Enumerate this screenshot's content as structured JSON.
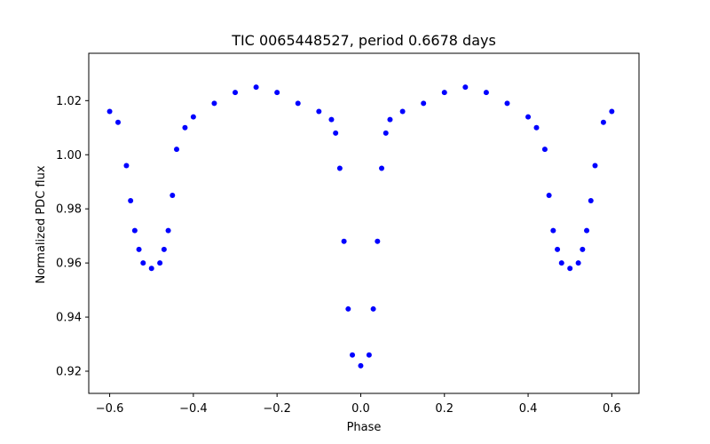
{
  "chart_data": {
    "type": "scatter",
    "title": "TIC 0065448527, period 0.6678 days",
    "xlabel": "Phase",
    "ylabel": "Normalized PDC flux",
    "xlim": [
      -0.65,
      0.665
    ],
    "ylim": [
      0.9118,
      1.0375
    ],
    "xticks": [
      -0.6,
      -0.4,
      -0.2,
      0.0,
      0.2,
      0.4,
      0.6
    ],
    "xtick_labels": [
      "−0.6",
      "−0.4",
      "−0.2",
      "0.0",
      "0.2",
      "0.4",
      "0.6"
    ],
    "yticks": [
      0.92,
      0.94,
      0.96,
      0.98,
      1.0,
      1.02
    ],
    "ytick_labels": [
      "0.92",
      "0.94",
      "0.96",
      "0.98",
      "1.00",
      "1.02"
    ],
    "grid": false,
    "series": [
      {
        "name": "PDC flux",
        "color": "#0000ff",
        "marker": "circle",
        "x": [
          -0.6,
          -0.58,
          -0.56,
          -0.55,
          -0.54,
          -0.53,
          -0.52,
          -0.5,
          -0.48,
          -0.47,
          -0.46,
          -0.45,
          -0.44,
          -0.42,
          -0.4,
          -0.35,
          -0.3,
          -0.25,
          -0.2,
          -0.15,
          -0.1,
          -0.07,
          -0.06,
          -0.05,
          -0.04,
          -0.03,
          -0.02,
          0.0,
          0.02,
          0.03,
          0.04,
          0.05,
          0.06,
          0.07,
          0.1,
          0.15,
          0.2,
          0.25,
          0.3,
          0.35,
          0.4,
          0.42,
          0.44,
          0.45,
          0.46,
          0.47,
          0.48,
          0.5,
          0.52,
          0.53,
          0.54,
          0.55,
          0.56,
          0.58,
          0.6
        ],
        "y": [
          1.016,
          1.012,
          0.996,
          0.983,
          0.972,
          0.965,
          0.96,
          0.958,
          0.96,
          0.965,
          0.972,
          0.985,
          1.002,
          1.01,
          1.014,
          1.019,
          1.023,
          1.025,
          1.023,
          1.019,
          1.016,
          1.013,
          1.008,
          0.995,
          0.968,
          0.943,
          0.926,
          0.922,
          0.926,
          0.943,
          0.968,
          0.995,
          1.008,
          1.013,
          1.016,
          1.019,
          1.023,
          1.025,
          1.023,
          1.019,
          1.014,
          1.01,
          1.002,
          0.985,
          0.972,
          0.965,
          0.96,
          0.958,
          0.96,
          0.965,
          0.972,
          0.983,
          0.996,
          1.012,
          1.016
        ]
      }
    ]
  }
}
